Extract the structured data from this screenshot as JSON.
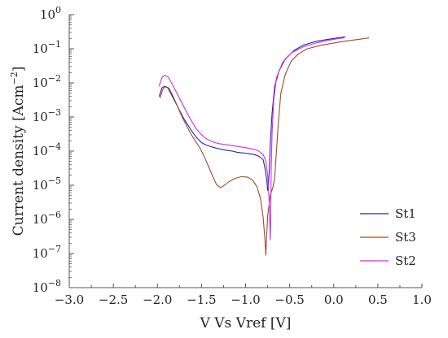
{
  "chart_data": {
    "type": "line",
    "xlabel": "V Vs Vref [V]",
    "ylabel": "Current density  [Acm",
    "ylabel_exponent": "−2",
    "ylabel_close": "]",
    "xlim": [
      -3.0,
      1.0
    ],
    "ylim_log10": [
      -8,
      0
    ],
    "y_scale": "log",
    "grid": false,
    "legend_position": "bottom-right",
    "x_ticks": [
      -3.0,
      -2.5,
      -2.0,
      -1.5,
      -1.0,
      -0.5,
      0.0,
      0.5,
      1.0
    ],
    "x_tick_labels": [
      "−3.0",
      "−2.5",
      "−2.0",
      "−1.5",
      "−1.0",
      "−0.5",
      "0.0",
      "0.5",
      "1.0"
    ],
    "y_ticks_log10": [
      -8,
      -7,
      -6,
      -5,
      -4,
      -3,
      -2,
      -1,
      0
    ],
    "y_tick_labels": [
      {
        "base": "10",
        "exp": "−8"
      },
      {
        "base": "10",
        "exp": "−7"
      },
      {
        "base": "10",
        "exp": "−6"
      },
      {
        "base": "10",
        "exp": "−5"
      },
      {
        "base": "10",
        "exp": "−4"
      },
      {
        "base": "10",
        "exp": "−3"
      },
      {
        "base": "10",
        "exp": "−2"
      },
      {
        "base": "10",
        "exp": "−1"
      },
      {
        "base": "10",
        "exp": "0"
      }
    ],
    "series": [
      {
        "name": "St1",
        "color": "#2323b4",
        "points": [
          [
            -1.98,
            -2.4
          ],
          [
            -1.95,
            -2.15
          ],
          [
            -1.92,
            -2.1
          ],
          [
            -1.88,
            -2.15
          ],
          [
            -1.85,
            -2.3
          ],
          [
            -1.8,
            -2.55
          ],
          [
            -1.75,
            -2.8
          ],
          [
            -1.7,
            -3.05
          ],
          [
            -1.65,
            -3.25
          ],
          [
            -1.6,
            -3.45
          ],
          [
            -1.55,
            -3.62
          ],
          [
            -1.5,
            -3.75
          ],
          [
            -1.45,
            -3.82
          ],
          [
            -1.4,
            -3.86
          ],
          [
            -1.35,
            -3.9
          ],
          [
            -1.3,
            -3.93
          ],
          [
            -1.25,
            -3.96
          ],
          [
            -1.2,
            -3.98
          ],
          [
            -1.15,
            -4.0
          ],
          [
            -1.1,
            -4.03
          ],
          [
            -1.05,
            -4.05
          ],
          [
            -1.0,
            -4.06
          ],
          [
            -0.95,
            -4.08
          ],
          [
            -0.9,
            -4.1
          ],
          [
            -0.85,
            -4.15
          ],
          [
            -0.8,
            -4.25
          ],
          [
            -0.78,
            -4.5
          ],
          [
            -0.76,
            -4.85
          ],
          [
            -0.75,
            -5.15
          ],
          [
            -0.74,
            -5.0
          ],
          [
            -0.73,
            -4.5
          ],
          [
            -0.72,
            -3.8
          ],
          [
            -0.7,
            -2.9
          ],
          [
            -0.67,
            -2.1
          ],
          [
            -0.62,
            -1.65
          ],
          [
            -0.55,
            -1.3
          ],
          [
            -0.45,
            -1.05
          ],
          [
            -0.35,
            -0.9
          ],
          [
            -0.2,
            -0.78
          ],
          [
            -0.05,
            -0.72
          ],
          [
            0.05,
            -0.68
          ],
          [
            0.13,
            -0.65
          ]
        ]
      },
      {
        "name": "St3",
        "color": "#a24a26",
        "points": [
          [
            -1.97,
            -2.45
          ],
          [
            -1.94,
            -2.2
          ],
          [
            -1.91,
            -2.1
          ],
          [
            -1.87,
            -2.15
          ],
          [
            -1.82,
            -2.4
          ],
          [
            -1.77,
            -2.7
          ],
          [
            -1.72,
            -3.0
          ],
          [
            -1.67,
            -3.25
          ],
          [
            -1.62,
            -3.5
          ],
          [
            -1.57,
            -3.7
          ],
          [
            -1.52,
            -3.9
          ],
          [
            -1.47,
            -4.15
          ],
          [
            -1.42,
            -4.45
          ],
          [
            -1.37,
            -4.75
          ],
          [
            -1.33,
            -4.98
          ],
          [
            -1.28,
            -5.07
          ],
          [
            -1.24,
            -5.0
          ],
          [
            -1.18,
            -4.88
          ],
          [
            -1.12,
            -4.8
          ],
          [
            -1.05,
            -4.75
          ],
          [
            -0.98,
            -4.76
          ],
          [
            -0.92,
            -4.85
          ],
          [
            -0.87,
            -5.05
          ],
          [
            -0.83,
            -5.4
          ],
          [
            -0.8,
            -5.95
          ],
          [
            -0.78,
            -6.6
          ],
          [
            -0.77,
            -7.05
          ],
          [
            -0.765,
            -6.7
          ],
          [
            -0.75,
            -5.9
          ],
          [
            -0.72,
            -5.3
          ],
          [
            -0.69,
            -5.05
          ],
          [
            -0.67,
            -4.8
          ],
          [
            -0.65,
            -4.0
          ],
          [
            -0.63,
            -3.2
          ],
          [
            -0.6,
            -2.3
          ],
          [
            -0.55,
            -1.75
          ],
          [
            -0.48,
            -1.35
          ],
          [
            -0.4,
            -1.15
          ],
          [
            -0.3,
            -1.0
          ],
          [
            -0.15,
            -0.9
          ],
          [
            0.0,
            -0.83
          ],
          [
            0.15,
            -0.77
          ],
          [
            0.3,
            -0.72
          ],
          [
            0.4,
            -0.68
          ]
        ]
      },
      {
        "name": "St2",
        "color": "#d02ed6",
        "points": [
          [
            -1.98,
            -2.1
          ],
          [
            -1.95,
            -1.85
          ],
          [
            -1.92,
            -1.78
          ],
          [
            -1.88,
            -1.82
          ],
          [
            -1.84,
            -2.0
          ],
          [
            -1.8,
            -2.2
          ],
          [
            -1.75,
            -2.45
          ],
          [
            -1.7,
            -2.7
          ],
          [
            -1.65,
            -2.95
          ],
          [
            -1.6,
            -3.17
          ],
          [
            -1.55,
            -3.38
          ],
          [
            -1.5,
            -3.52
          ],
          [
            -1.45,
            -3.63
          ],
          [
            -1.4,
            -3.7
          ],
          [
            -1.35,
            -3.75
          ],
          [
            -1.3,
            -3.78
          ],
          [
            -1.2,
            -3.82
          ],
          [
            -1.1,
            -3.86
          ],
          [
            -1.0,
            -3.9
          ],
          [
            -0.9,
            -3.95
          ],
          [
            -0.85,
            -4.0
          ],
          [
            -0.8,
            -4.1
          ],
          [
            -0.77,
            -4.3
          ],
          [
            -0.75,
            -4.7
          ],
          [
            -0.73,
            -5.6
          ],
          [
            -0.72,
            -6.6
          ],
          [
            -0.715,
            -6.0
          ],
          [
            -0.71,
            -4.6
          ],
          [
            -0.7,
            -3.5
          ],
          [
            -0.68,
            -2.5
          ],
          [
            -0.65,
            -1.85
          ],
          [
            -0.58,
            -1.4
          ],
          [
            -0.48,
            -1.12
          ],
          [
            -0.35,
            -0.95
          ],
          [
            -0.2,
            -0.83
          ],
          [
            -0.05,
            -0.75
          ],
          [
            0.05,
            -0.7
          ],
          [
            0.12,
            -0.68
          ]
        ]
      }
    ]
  }
}
